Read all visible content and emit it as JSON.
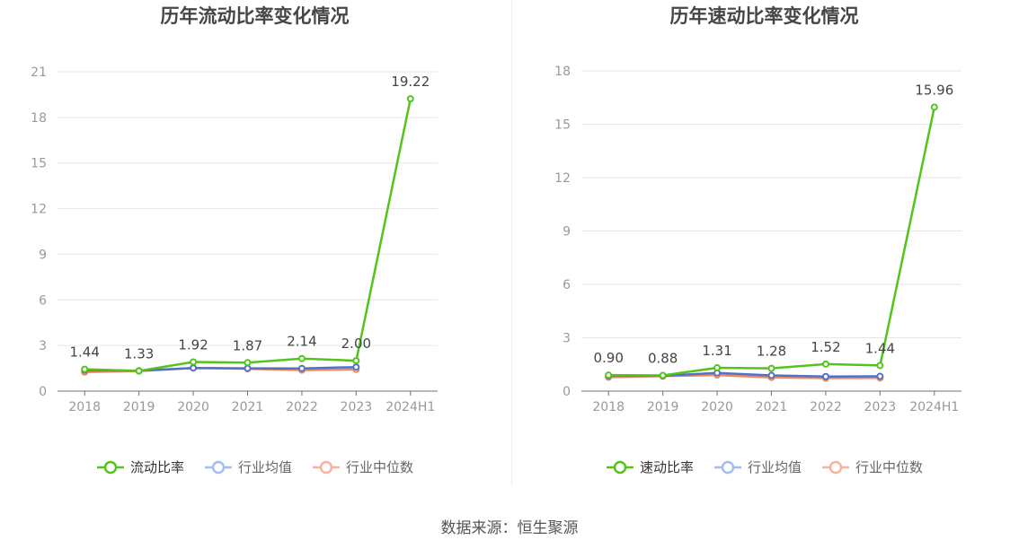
{
  "chart_data": [
    {
      "type": "line",
      "title": "历年流动比率变化情况",
      "categories": [
        "2018",
        "2019",
        "2020",
        "2021",
        "2022",
        "2023",
        "2024H1"
      ],
      "ylim": [
        0,
        21
      ],
      "yticks": [
        0,
        3,
        6,
        9,
        12,
        15,
        18,
        21
      ],
      "grid": true,
      "legend_position": "bottom",
      "series": [
        {
          "name": "流动比率",
          "color": "#52c41a",
          "values": [
            1.44,
            1.33,
            1.92,
            1.87,
            2.14,
            2.0,
            19.22
          ],
          "labels": [
            "1.44",
            "1.33",
            "1.92",
            "1.87",
            "2.14",
            "2.00",
            "19.22"
          ]
        },
        {
          "name": "行业均值",
          "color": "#5470c6",
          "values": [
            1.38,
            1.34,
            1.52,
            1.5,
            1.49,
            1.58,
            null
          ]
        },
        {
          "name": "行业中位数",
          "color": "#ee8a5c",
          "values": [
            1.25,
            1.32,
            1.52,
            1.47,
            1.38,
            1.43,
            null
          ]
        }
      ]
    },
    {
      "type": "line",
      "title": "历年速动比率变化情况",
      "categories": [
        "2018",
        "2019",
        "2020",
        "2021",
        "2022",
        "2023",
        "2024H1"
      ],
      "ylim": [
        0,
        18
      ],
      "yticks": [
        0,
        3,
        6,
        9,
        12,
        15,
        18
      ],
      "grid": true,
      "legend_position": "bottom",
      "series": [
        {
          "name": "速动比率",
          "color": "#52c41a",
          "values": [
            0.9,
            0.88,
            1.31,
            1.28,
            1.52,
            1.44,
            15.96
          ],
          "labels": [
            "0.90",
            "0.88",
            "1.31",
            "1.28",
            "1.52",
            "1.44",
            "15.96"
          ]
        },
        {
          "name": "行业均值",
          "color": "#5470c6",
          "values": [
            0.86,
            0.86,
            1.02,
            0.88,
            0.82,
            0.83,
            null
          ]
        },
        {
          "name": "行业中位数",
          "color": "#ee8a5c",
          "values": [
            0.78,
            0.84,
            0.9,
            0.77,
            0.73,
            0.74,
            null
          ]
        }
      ]
    }
  ],
  "legend_styles": {
    "left": {
      "icon_colors": [
        "#52c41a",
        "#a4bdf0",
        "#f6b4a0"
      ]
    },
    "right": {
      "icon_colors": [
        "#52c41a",
        "#a4bdf0",
        "#f6b4a0"
      ]
    }
  },
  "footer": {
    "source": "数据来源：恒生聚源"
  }
}
